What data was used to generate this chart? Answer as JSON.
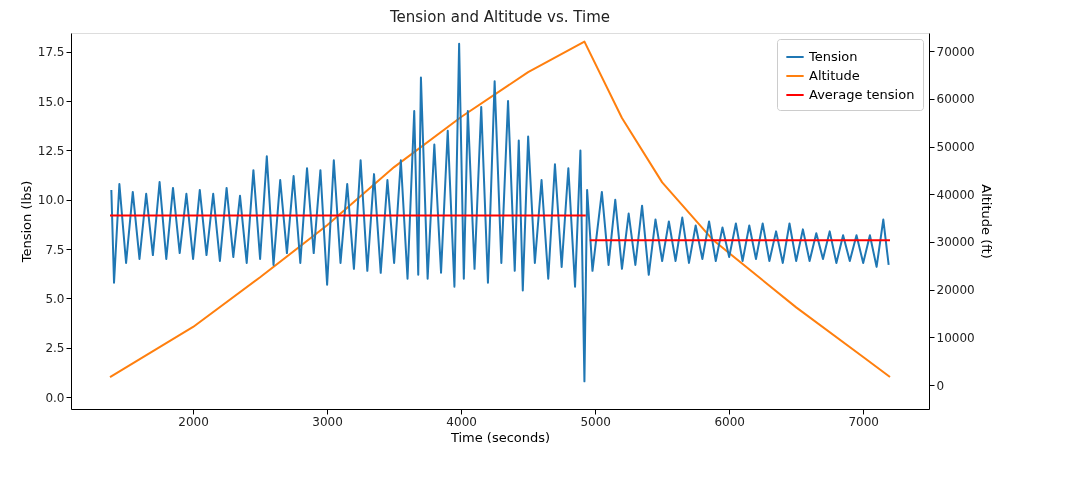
{
  "chart_data": {
    "type": "line",
    "title": "Tension and Altitude vs. Time",
    "xlabel": "Time (seconds)",
    "ylabel": "Tension (lbs)",
    "y2label": "Altitude (ft)",
    "xlim": [
      1089,
      7491
    ],
    "xticks": [
      2000,
      3000,
      4000,
      5000,
      6000,
      7000
    ],
    "ylim": [
      -0.6,
      18.45
    ],
    "yticks": [
      {
        "value": 0,
        "label": "0.0"
      },
      2.5,
      {
        "value": 5,
        "label": "5.0"
      },
      7.5,
      {
        "value": 10,
        "label": "10.0"
      },
      12.5,
      {
        "value": 15,
        "label": "15.0"
      },
      17.5
    ],
    "y2lim": [
      -5000,
      73800
    ],
    "y2ticks": [
      0,
      10000,
      20000,
      30000,
      40000,
      50000,
      60000,
      70000
    ],
    "grid": false,
    "legend": "top right",
    "line_style": "solid",
    "marker": "none",
    "series": [
      {
        "name": "Tension",
        "color": "#1f77b4",
        "x": [
          1390,
          1410,
          1450,
          1500,
          1550,
          1600,
          1650,
          1700,
          1750,
          1800,
          1850,
          1900,
          1950,
          2000,
          2050,
          2100,
          2150,
          2200,
          2250,
          2300,
          2350,
          2400,
          2450,
          2500,
          2550,
          2600,
          2650,
          2700,
          2750,
          2800,
          2850,
          2900,
          2950,
          3000,
          3050,
          3100,
          3150,
          3200,
          3250,
          3300,
          3350,
          3400,
          3450,
          3500,
          3550,
          3600,
          3650,
          3680,
          3700,
          3750,
          3800,
          3850,
          3900,
          3950,
          3985,
          4020,
          4050,
          4100,
          4150,
          4200,
          4250,
          4300,
          4350,
          4400,
          4430,
          4460,
          4500,
          4550,
          4600,
          4650,
          4700,
          4750,
          4800,
          4850,
          4890,
          4920,
          4940,
          4980,
          5050,
          5100,
          5150,
          5200,
          5250,
          5300,
          5350,
          5400,
          5450,
          5500,
          5550,
          5600,
          5650,
          5700,
          5750,
          5800,
          5850,
          5900,
          5950,
          6000,
          6050,
          6100,
          6150,
          6200,
          6250,
          6300,
          6350,
          6400,
          6450,
          6500,
          6550,
          6600,
          6650,
          6700,
          6750,
          6800,
          6850,
          6900,
          6950,
          7000,
          7050,
          7100,
          7150,
          7190
        ],
        "values": [
          10.5,
          5.8,
          10.8,
          6.8,
          10.4,
          7.0,
          10.3,
          7.2,
          10.9,
          7.0,
          10.6,
          7.3,
          10.3,
          7.0,
          10.5,
          7.2,
          10.3,
          6.9,
          10.6,
          7.1,
          10.2,
          6.8,
          11.5,
          7.0,
          12.2,
          6.7,
          11.0,
          7.3,
          11.2,
          6.8,
          11.6,
          7.3,
          11.5,
          5.7,
          12.0,
          6.8,
          10.8,
          6.5,
          12.0,
          6.4,
          11.3,
          6.3,
          11.0,
          6.8,
          12.0,
          6.0,
          14.5,
          6.2,
          16.2,
          6.0,
          12.8,
          6.3,
          13.5,
          5.6,
          17.9,
          6.0,
          14.5,
          6.5,
          14.7,
          5.8,
          16.0,
          6.8,
          15.0,
          6.4,
          13.0,
          5.4,
          13.2,
          6.8,
          11.0,
          6.0,
          11.8,
          6.6,
          11.6,
          5.6,
          12.5,
          0.8,
          10.5,
          6.4,
          10.4,
          6.7,
          10.0,
          6.5,
          9.3,
          6.7,
          9.7,
          6.2,
          9.0,
          6.9,
          8.9,
          6.9,
          9.1,
          6.8,
          8.7,
          7.0,
          8.9,
          6.9,
          8.6,
          7.1,
          8.8,
          6.9,
          8.7,
          7.0,
          8.8,
          6.9,
          8.4,
          6.8,
          8.8,
          6.9,
          8.5,
          6.9,
          8.3,
          7.0,
          8.4,
          6.8,
          8.2,
          6.9,
          8.2,
          6.8,
          8.2,
          6.6,
          9.0,
          6.7
        ]
      },
      {
        "name": "Altitude",
        "color": "#ff7f0e",
        "axis": "y2",
        "x": [
          1380,
          2000,
          2500,
          3000,
          3500,
          4000,
          4500,
          4920,
          5200,
          5500,
          5880,
          6500,
          7000,
          7200
        ],
        "values": [
          1700,
          12200,
          22600,
          33500,
          45700,
          56200,
          65600,
          72000,
          56000,
          42500,
          30400,
          16300,
          5900,
          1700
        ]
      },
      {
        "name": "Average tension",
        "color": "#ff0000",
        "x": [
          1380,
          4930,
          4945,
          4960,
          7200
        ],
        "values": [
          9.2,
          9.2,
          null,
          7.95,
          7.95
        ]
      }
    ]
  }
}
